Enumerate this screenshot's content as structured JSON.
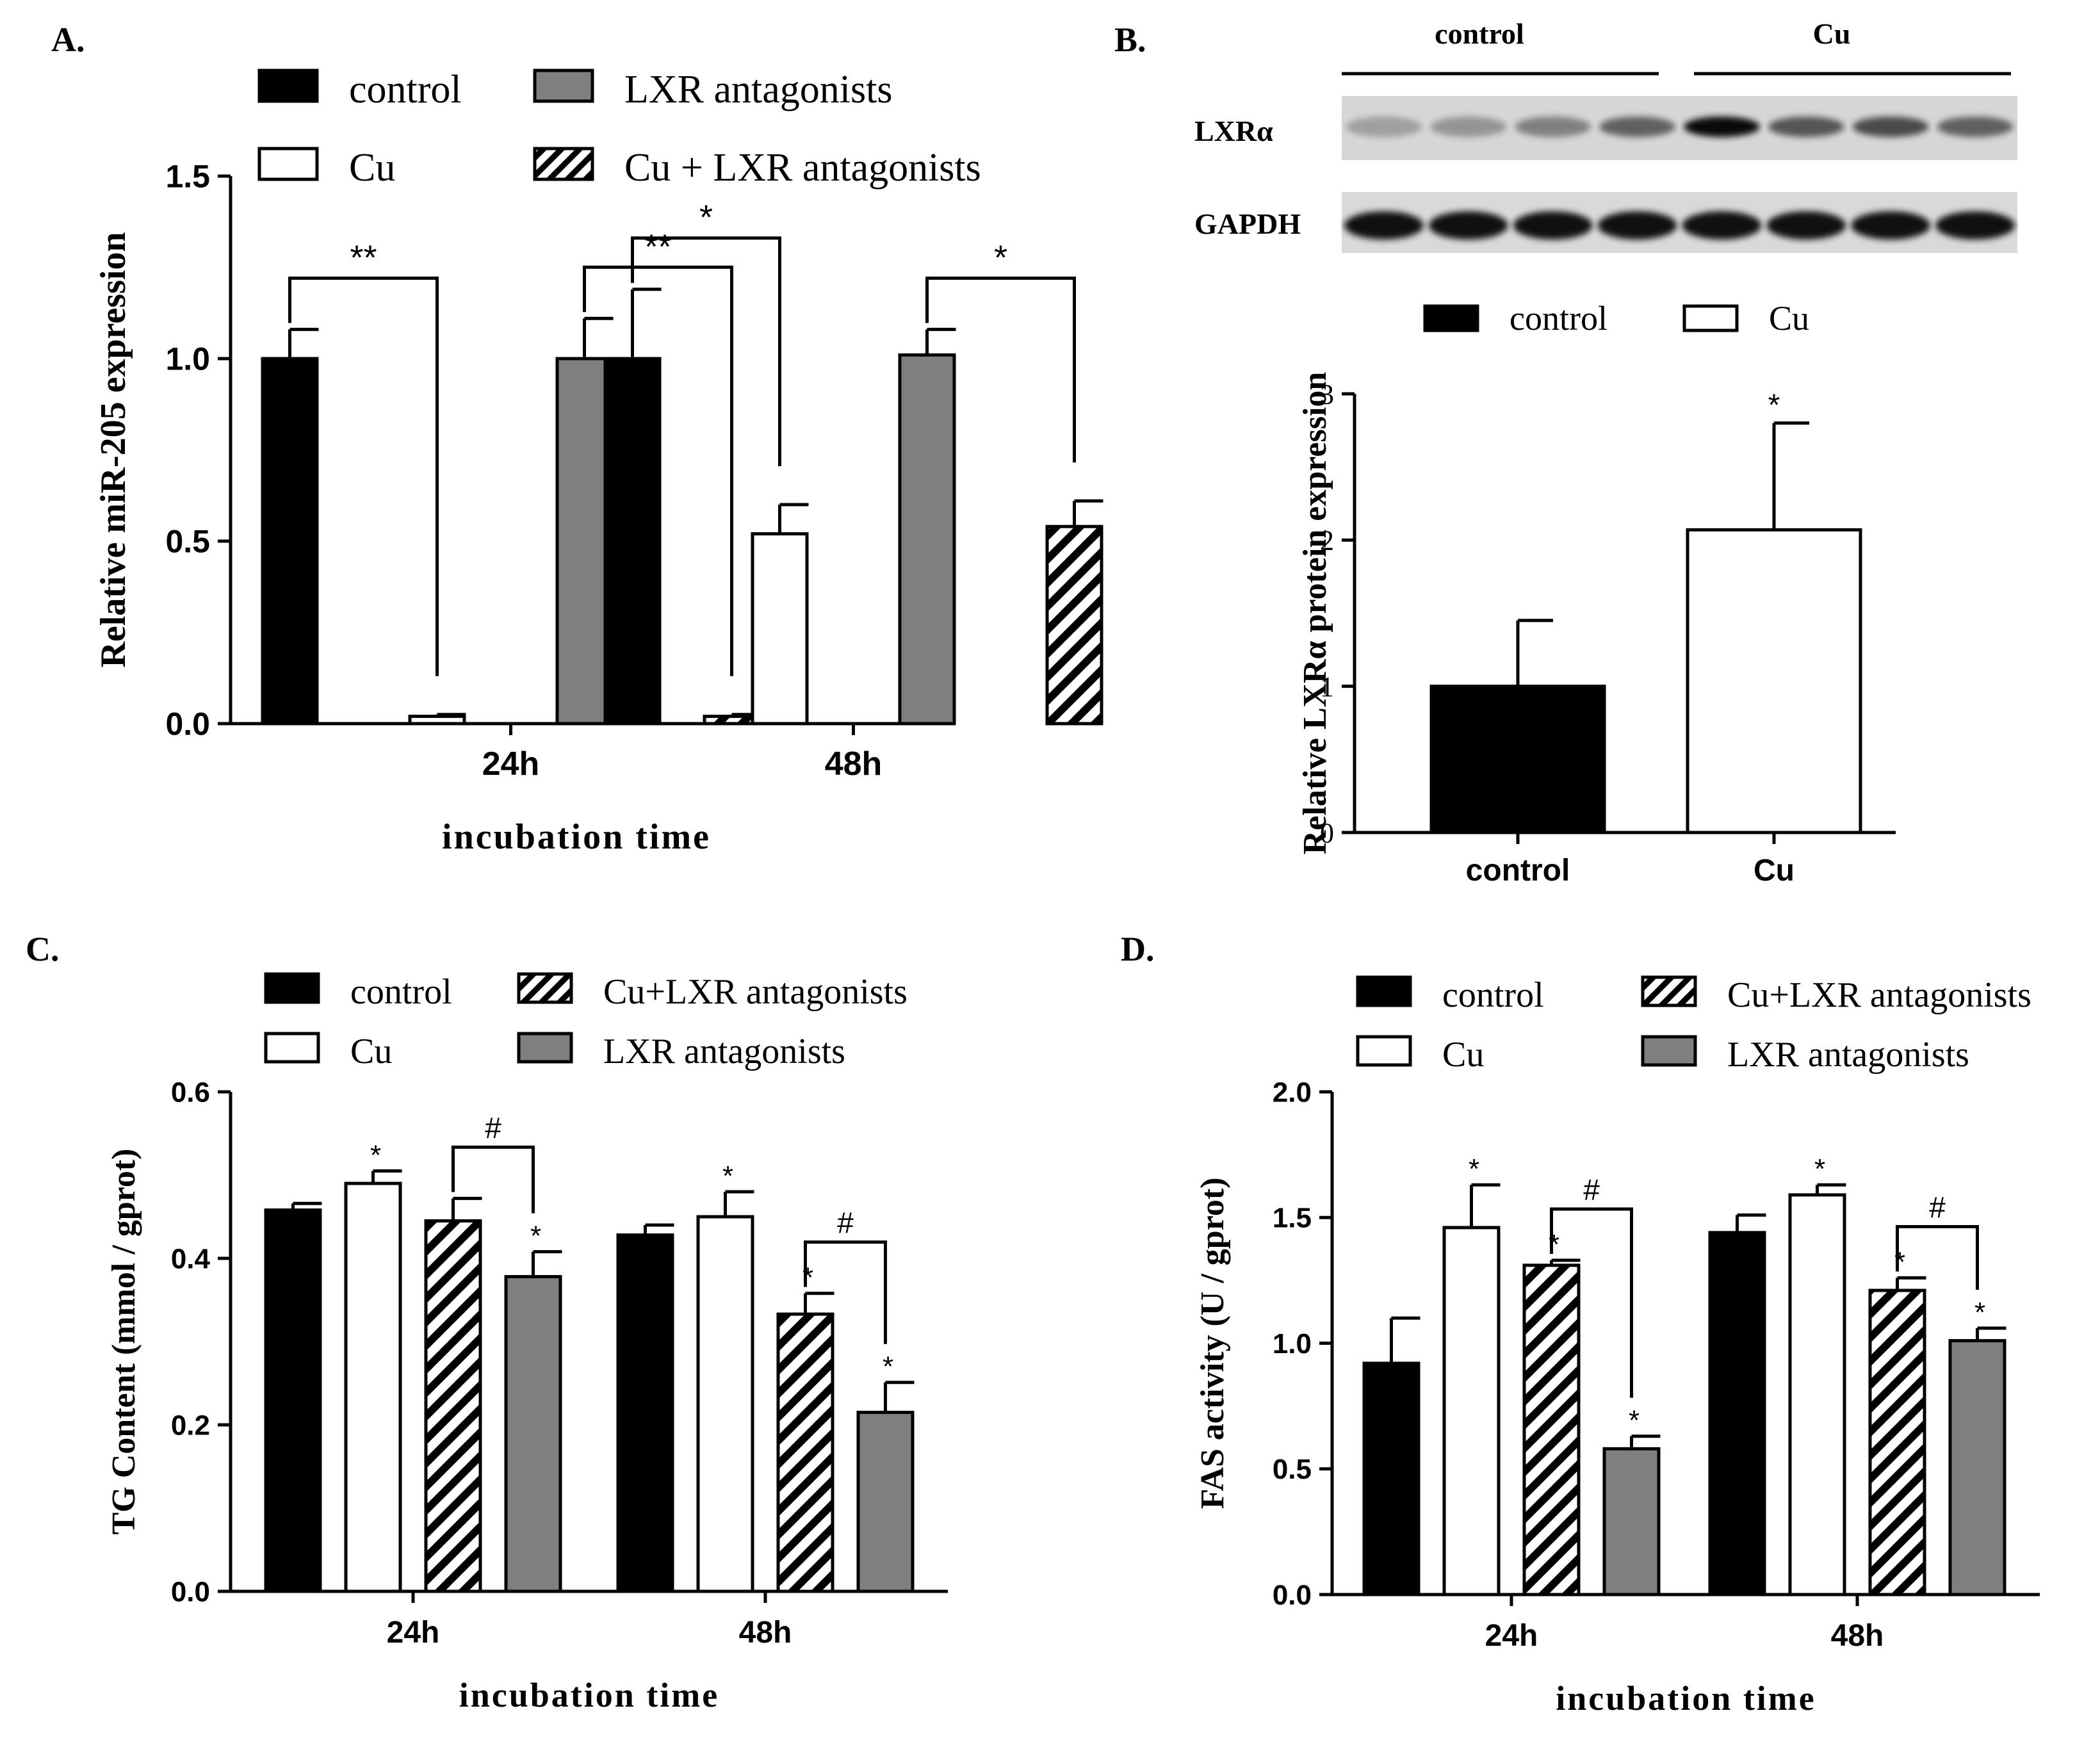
{
  "colors": {
    "black": "#000000",
    "white": "#ffffff",
    "gray": "#7f7f7f",
    "blot_bg": "#d9d9d9",
    "blot_band": "#1a1a1a"
  },
  "chart_data": [
    {
      "id": "A",
      "panel_label": "A.",
      "type": "bar",
      "title": "",
      "xlabel": "incubation time",
      "ylabel": "Relative miR-205 expression",
      "ylim": [
        0,
        1.5
      ],
      "yticks": [
        "0.0",
        "0.5",
        "1.0",
        "1.5"
      ],
      "ytick_values": [
        0,
        0.5,
        1.0,
        1.5
      ],
      "categories": [
        "24h",
        "48h"
      ],
      "series": [
        {
          "name": "control",
          "fill": "black",
          "values": [
            1.0,
            1.0
          ],
          "errors": [
            0.08,
            0.19
          ]
        },
        {
          "name": "Cu",
          "fill": "white",
          "values": [
            0.02,
            0.52
          ],
          "errors": [
            0.005,
            0.08
          ]
        },
        {
          "name": "LXR antagonists",
          "fill": "gray",
          "values": [
            1.0,
            1.01
          ],
          "errors": [
            0.11,
            0.07
          ]
        },
        {
          "name": "Cu + LXR antagonists",
          "fill": "hatch",
          "values": [
            0.02,
            0.54
          ],
          "errors": [
            0.005,
            0.07
          ]
        }
      ],
      "legend_order": [
        0,
        2,
        1,
        3
      ],
      "annotations": [
        {
          "text": "**",
          "from": [
            0,
            0
          ],
          "to": [
            0,
            1
          ]
        },
        {
          "text": "**",
          "from": [
            0,
            2
          ],
          "to": [
            0,
            3
          ]
        },
        {
          "text": "*",
          "from": [
            1,
            0
          ],
          "to": [
            1,
            1
          ]
        },
        {
          "text": "*",
          "from": [
            1,
            2
          ],
          "to": [
            1,
            3
          ]
        }
      ]
    },
    {
      "id": "B",
      "panel_label": "B.",
      "type": "bar",
      "title": "",
      "xlabel": "",
      "ylabel": "Relative LXRα protein expression",
      "ylim": [
        0,
        3
      ],
      "yticks": [
        "0",
        "1",
        "2",
        "3"
      ],
      "ytick_values": [
        0,
        1,
        2,
        3
      ],
      "categories": [
        "control",
        "Cu"
      ],
      "series": [
        {
          "name": "expression",
          "values": [
            1.0,
            2.07
          ],
          "errors": [
            0.45,
            0.73
          ],
          "fills": [
            "black",
            "white"
          ]
        }
      ],
      "legend": [
        {
          "name": "control",
          "fill": "black"
        },
        {
          "name": "Cu",
          "fill": "white"
        }
      ],
      "markers": [
        "",
        "*"
      ],
      "blot": {
        "group_labels": [
          "control",
          "Cu"
        ],
        "rows": [
          "LXRα",
          "GAPDH"
        ]
      }
    },
    {
      "id": "C",
      "panel_label": "C.",
      "type": "bar",
      "title": "",
      "xlabel": "incubation time",
      "ylabel": "TG Content (mmol / gprot)",
      "ylim": [
        0,
        0.6
      ],
      "yticks": [
        "0.0",
        "0.2",
        "0.4",
        "0.6"
      ],
      "ytick_values": [
        0,
        0.2,
        0.4,
        0.6
      ],
      "categories": [
        "24h",
        "48h"
      ],
      "series": [
        {
          "name": "control",
          "fill": "black",
          "values": [
            0.458,
            0.428
          ],
          "errors": [
            0.008,
            0.012
          ],
          "markers": [
            "",
            ""
          ]
        },
        {
          "name": "Cu",
          "fill": "white",
          "values": [
            0.49,
            0.45
          ],
          "errors": [
            0.015,
            0.03
          ],
          "markers": [
            "*",
            "*"
          ]
        },
        {
          "name": "Cu+LXR antagonists",
          "fill": "hatch",
          "values": [
            0.445,
            0.333
          ],
          "errors": [
            0.027,
            0.025
          ],
          "markers": [
            "",
            "*"
          ]
        },
        {
          "name": "LXR antagonists",
          "fill": "gray",
          "values": [
            0.378,
            0.215
          ],
          "errors": [
            0.03,
            0.036
          ],
          "markers": [
            "*",
            "*"
          ]
        }
      ],
      "legend_order": [
        0,
        2,
        1,
        3
      ],
      "annotations": [
        {
          "text": "#",
          "from": [
            0,
            2
          ],
          "to": [
            0,
            3
          ]
        },
        {
          "text": "#",
          "from": [
            1,
            2
          ],
          "to": [
            1,
            3
          ]
        }
      ]
    },
    {
      "id": "D",
      "panel_label": "D.",
      "type": "bar",
      "title": "",
      "xlabel": "incubation time",
      "ylabel": "FAS activity (U / gprot)",
      "ylim": [
        0,
        2.0
      ],
      "yticks": [
        "0.0",
        "0.5",
        "1.0",
        "1.5",
        "2.0"
      ],
      "ytick_values": [
        0,
        0.5,
        1.0,
        1.5,
        2.0
      ],
      "categories": [
        "24h",
        "48h"
      ],
      "series": [
        {
          "name": "control",
          "fill": "black",
          "values": [
            0.92,
            1.44
          ],
          "errors": [
            0.18,
            0.07
          ],
          "markers": [
            "",
            ""
          ]
        },
        {
          "name": "Cu",
          "fill": "white",
          "values": [
            1.46,
            1.59
          ],
          "errors": [
            0.17,
            0.04
          ],
          "markers": [
            "*",
            "*"
          ]
        },
        {
          "name": "Cu+LXR antagonists",
          "fill": "hatch",
          "values": [
            1.31,
            1.21
          ],
          "errors": [
            0.02,
            0.05
          ],
          "markers": [
            "*",
            "*"
          ]
        },
        {
          "name": "LXR antagonists",
          "fill": "gray",
          "values": [
            0.58,
            1.01
          ],
          "errors": [
            0.05,
            0.05
          ],
          "markers": [
            "*",
            "*"
          ]
        }
      ],
      "legend_order": [
        0,
        2,
        1,
        3
      ],
      "annotations": [
        {
          "text": "#",
          "from": [
            0,
            2
          ],
          "to": [
            0,
            3
          ]
        },
        {
          "text": "#",
          "from": [
            1,
            2
          ],
          "to": [
            1,
            3
          ]
        }
      ]
    }
  ]
}
